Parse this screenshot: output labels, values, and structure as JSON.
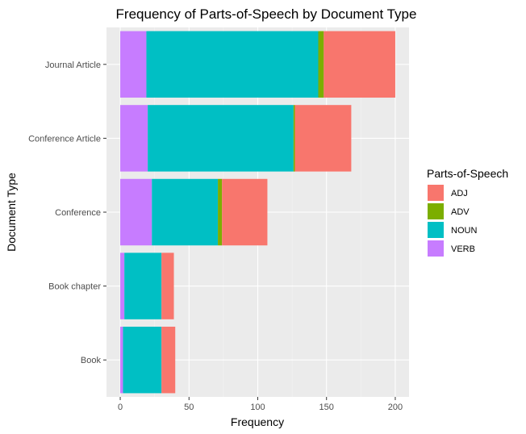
{
  "chart_data": {
    "type": "bar",
    "orientation": "horizontal",
    "stacked": true,
    "title": "Frequency of Parts-of-Speech by Document Type",
    "xlabel": "Frequency",
    "ylabel": "Document Type",
    "xlim": [
      -10,
      210
    ],
    "xticks": [
      0,
      50,
      100,
      150,
      200
    ],
    "grid": true,
    "legend": {
      "title": "Parts-of-Speech",
      "position": "right"
    },
    "categories": [
      "Journal Article",
      "Conference Article",
      "Conference",
      "Book chapter",
      "Book"
    ],
    "stack_order": [
      "VERB",
      "NOUN",
      "ADV",
      "ADJ"
    ],
    "series": [
      {
        "name": "ADJ",
        "color": "#F8766D",
        "values": [
          52,
          41,
          33,
          9,
          10
        ]
      },
      {
        "name": "ADV",
        "color": "#7CAE00",
        "values": [
          4,
          1,
          3,
          0,
          0
        ]
      },
      {
        "name": "NOUN",
        "color": "#00BFC4",
        "values": [
          125,
          106,
          48,
          27,
          28
        ]
      },
      {
        "name": "VERB",
        "color": "#C77CFF",
        "values": [
          19,
          20,
          23,
          3,
          2
        ]
      }
    ]
  }
}
